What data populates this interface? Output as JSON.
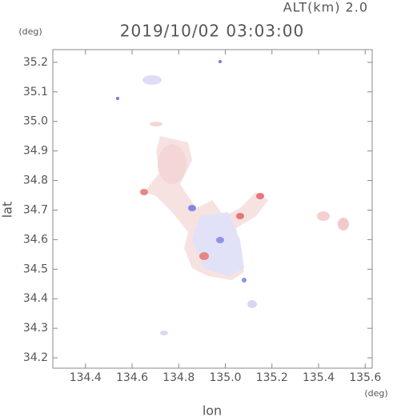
{
  "chart_data": {
    "type": "map",
    "title": "2019/10/02 03:03:00",
    "subtitle": "ALT(km) 2.0",
    "x_label": "lon",
    "y_label": "lat",
    "x_unit": "(deg)",
    "y_unit": "(deg)",
    "xlim": [
      134.26,
      135.63
    ],
    "ylim": [
      34.165,
      35.243
    ],
    "xticks": [
      134.4,
      134.6,
      134.8,
      {
        "value": 135,
        "label": "135.0"
      },
      135.2,
      135.4,
      135.6
    ],
    "yticks": [
      34.2,
      34.3,
      34.4,
      34.5,
      34.6,
      34.7,
      34.8,
      34.9,
      {
        "value": 35,
        "label": "35.0"
      },
      35.1,
      35.2
    ]
  }
}
